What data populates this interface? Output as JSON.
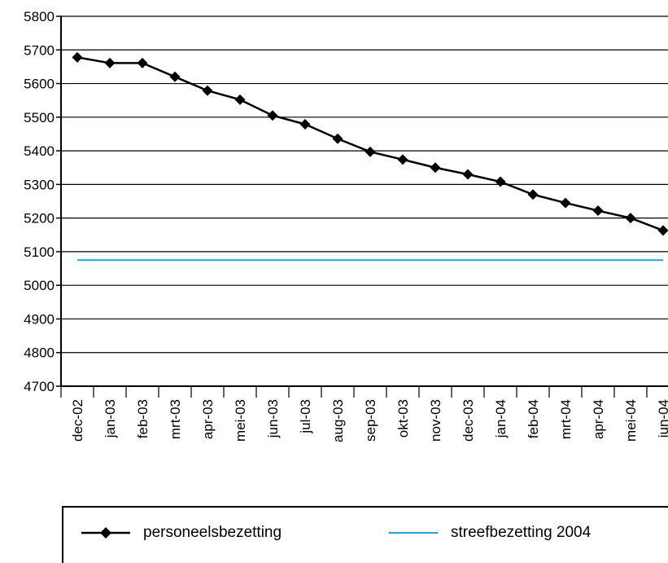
{
  "chart_data": {
    "type": "line",
    "categories": [
      "dec-02",
      "jan-03",
      "feb-03",
      "mrt-03",
      "apr-03",
      "mei-03",
      "jun-03",
      "jul-03",
      "aug-03",
      "sep-03",
      "okt-03",
      "nov-03",
      "dec-03",
      "jan-04",
      "feb-04",
      "mrt-04",
      "apr-04",
      "mei-04",
      "jun-04"
    ],
    "series": [
      {
        "name": "personeelsbezetting",
        "color": "#000000",
        "marker": "diamond",
        "values": [
          5678,
          5661,
          5661,
          5620,
          5579,
          5552,
          5505,
          5479,
          5436,
          5397,
          5374,
          5350,
          5330,
          5308,
          5270,
          5245,
          5222,
          5200,
          5163
        ]
      },
      {
        "name": "streefbezetting 2004",
        "color": "#1aa7dc",
        "marker": "none",
        "values": [
          5075,
          5075,
          5075,
          5075,
          5075,
          5075,
          5075,
          5075,
          5075,
          5075,
          5075,
          5075,
          5075,
          5075,
          5075,
          5075,
          5075,
          5075,
          5075
        ]
      }
    ],
    "yticks": [
      4700,
      4800,
      4900,
      5000,
      5100,
      5200,
      5300,
      5400,
      5500,
      5600,
      5700,
      5800
    ],
    "ylim": [
      4700,
      5800
    ],
    "grid": true,
    "legend_position": "bottom"
  }
}
